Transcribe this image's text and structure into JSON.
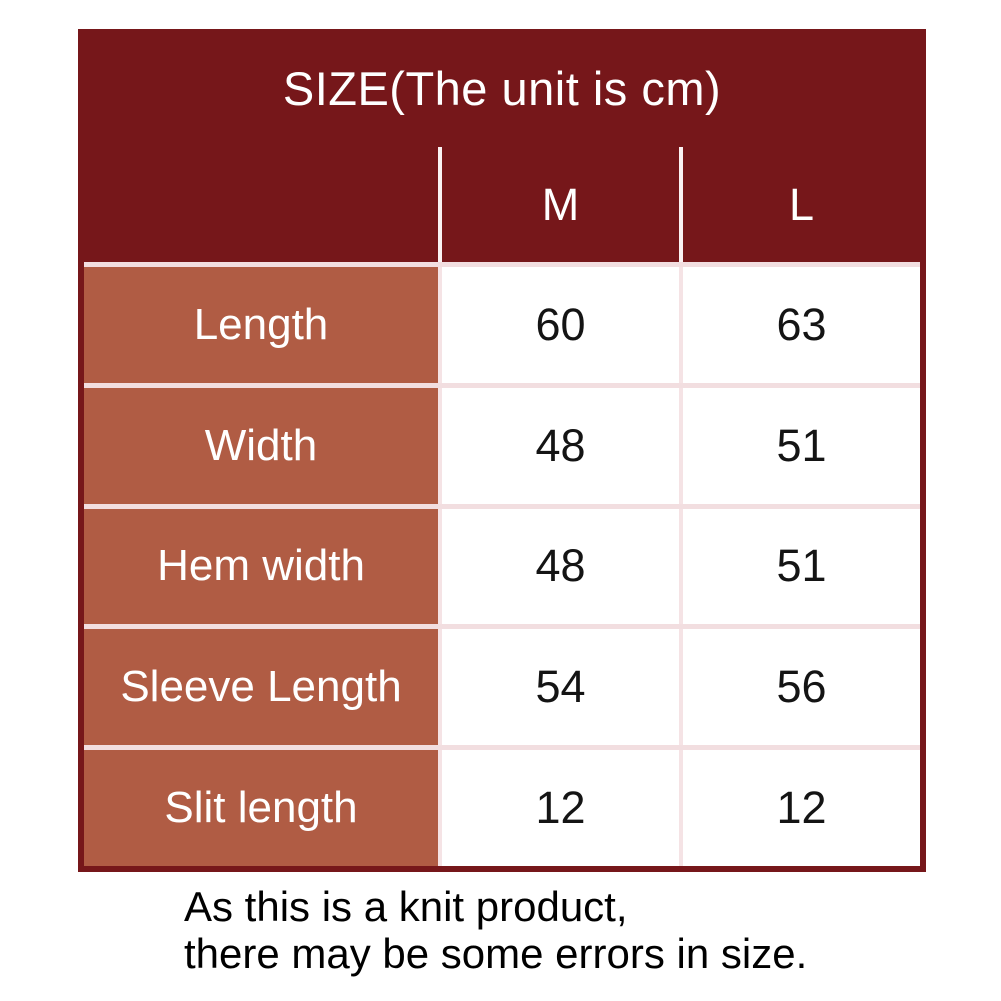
{
  "table": {
    "title": "SIZE(The unit is cm)",
    "columns": [
      "",
      "M",
      "L"
    ],
    "rows": [
      {
        "label": "Length",
        "m": "60",
        "l": "63"
      },
      {
        "label": "Width",
        "m": "48",
        "l": "51"
      },
      {
        "label": "Hem width",
        "m": "48",
        "l": "51"
      },
      {
        "label": "Sleeve Length",
        "m": "54",
        "l": "56"
      },
      {
        "label": "Slit length",
        "m": "12",
        "l": "12"
      }
    ],
    "colors": {
      "header_bg": "#76171a",
      "label_bg": "#b05c44",
      "value_bg": "#ffffff",
      "divider_pink": "#f2dee0",
      "header_divider": "#fbf2f3",
      "title_text": "#ffffff",
      "value_text": "#141414"
    }
  },
  "footer": {
    "line1": "As this is a knit product,",
    "line2": "there may be some errors in size."
  },
  "chart_data": {
    "type": "table",
    "title": "SIZE(The unit is cm)",
    "unit": "cm",
    "columns": [
      "",
      "M",
      "L"
    ],
    "rows": [
      [
        "Length",
        60,
        63
      ],
      [
        "Width",
        48,
        51
      ],
      [
        "Hem width",
        48,
        51
      ],
      [
        "Sleeve Length",
        54,
        56
      ],
      [
        "Slit length",
        12,
        12
      ]
    ],
    "note": "As this is a knit product, there may be some errors in size."
  }
}
